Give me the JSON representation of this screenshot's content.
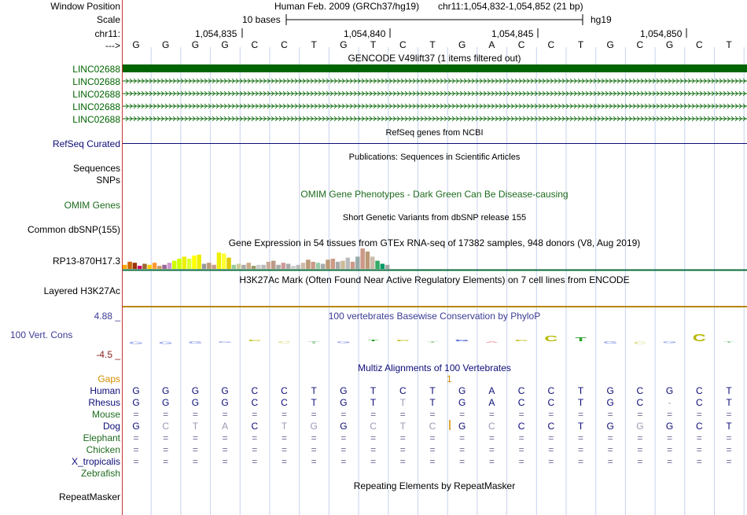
{
  "header": {
    "window_position_label": "Window Position",
    "scale_label": "Scale",
    "chrom_label": "chr11:",
    "strand_label": "--->",
    "assembly": "Human Feb. 2009 (GRCh37/hg19)",
    "position": "chr11:1,054,832-1,054,852 (21 bp)",
    "scale_text": "10 bases",
    "db": "hg19",
    "ticks": [
      "1,054,835",
      "1,054,840",
      "1,054,845",
      "1,054,850"
    ]
  },
  "reference_sequence": [
    "G",
    "G",
    "G",
    "G",
    "C",
    "C",
    "T",
    "G",
    "T",
    "C",
    "T",
    "G",
    "A",
    "C",
    "C",
    "T",
    "G",
    "C",
    "G",
    "C",
    "T"
  ],
  "gencode": {
    "title": "GENCODE V49lift37 (1 items filtered out)",
    "genes": [
      "LINC02688",
      "LINC02688",
      "LINC02688",
      "LINC02688",
      "LINC02688"
    ],
    "color": "#006400"
  },
  "refseq": {
    "title": "RefSeq genes from NCBI",
    "label": "RefSeq Curated"
  },
  "publications": {
    "title": "Publications: Sequences in Scientific Articles",
    "labels": [
      "Sequences",
      "SNPs"
    ]
  },
  "omim": {
    "title": "OMIM Gene Phenotypes - Dark Green Can Be Disease-causing",
    "label": "OMIM Genes"
  },
  "dbsnp": {
    "title": "Short Genetic Variants from dbSNP release 155",
    "label": "Common dbSNP(155)"
  },
  "gtex": {
    "title": "Gene Expression in 54 tissues from GTEx RNA-seq of 17382 samples, 948 donors (V8, Aug 2019)",
    "label": "RP13-870H17.3",
    "bars": [
      0.2,
      0.35,
      0.3,
      0.15,
      0.25,
      0.2,
      0.3,
      0.15,
      0.2,
      0.3,
      0.4,
      0.5,
      0.6,
      0.5,
      0.65,
      0.7,
      0.25,
      0.3,
      0.2,
      0.8,
      0.75,
      0.55,
      0.2,
      0.25,
      0.2,
      0.3,
      0.15,
      0.2,
      0.2,
      0.35,
      0.4,
      0.2,
      0.3,
      0.25,
      0.15,
      0.2,
      0.3,
      0.45,
      0.35,
      0.3,
      0.25,
      0.45,
      0.5,
      0.35,
      0.4,
      0.55,
      0.35,
      0.6,
      1.0,
      0.85,
      0.6,
      0.4,
      0.25,
      0.2
    ],
    "colors": [
      "#ffaa00",
      "#cc6600",
      "#993300",
      "#cc0066",
      "#996633",
      "#ffcc00",
      "#ff9933",
      "#cc9966",
      "#996699",
      "#cc99cc",
      "#ccff00",
      "#ccff00",
      "#eeee00",
      "#ddff33",
      "#ffff00",
      "#eeee00",
      "#999999",
      "#bb9977",
      "#cc9988",
      "#eeee00",
      "#ffff33",
      "#ddcc00",
      "#99cc99",
      "#cccc99",
      "#aaaaaa",
      "#ccaa88",
      "#999966",
      "#cccccc",
      "#bbbbbb",
      "#ccaa99",
      "#bb9988",
      "#aaaaaa",
      "#cc9999",
      "#aaaaaa",
      "#cccccc",
      "#bbbbbb",
      "#ccbbaa",
      "#bb9977",
      "#cc9988",
      "#99ccaa",
      "#aaaaaa",
      "#bb9977",
      "#cc9988",
      "#aaaaaa",
      "#ccbb99",
      "#bbbbbb",
      "#cc9988",
      "#99aaaa",
      "#cc9988",
      "#bb9977",
      "#ccbbaa",
      "#33aa66",
      "#009966",
      "#aaaaaa"
    ]
  },
  "h3k27ac": {
    "title": "H3K27Ac Mark (Often Found Near Active Regulatory Elements) on 7 cell lines from ENCODE",
    "label": "Layered H3K27Ac"
  },
  "conservation": {
    "title": "100 vertebrates Basewise Conservation by PhyloP",
    "label": "100 Vert. Cons",
    "ymax": "4.88 _",
    "ymin": "-4.5 _",
    "scores": [
      -0.6,
      -0.6,
      -0.5,
      -0.2,
      0,
      -0.4,
      -0.5,
      -0.4,
      0,
      0.2,
      -0.3,
      0,
      -0.3,
      0,
      1.2,
      0.9,
      -0.5,
      -0.6,
      -0.4,
      1.5,
      -0.2
    ]
  },
  "multiz": {
    "title": "Multiz Alignments of 100 Vertebrates",
    "gaps_label": "Gaps",
    "gaps_marker": "1",
    "species": [
      {
        "name": "Human",
        "seq": [
          "G",
          "G",
          "G",
          "G",
          "C",
          "C",
          "T",
          "G",
          "T",
          "C",
          "T",
          "G",
          "A",
          "C",
          "C",
          "T",
          "G",
          "C",
          "G",
          "C",
          "T"
        ],
        "faded": []
      },
      {
        "name": "Rhesus",
        "seq": [
          "G",
          "G",
          "G",
          "G",
          "C",
          "C",
          "T",
          "G",
          "T",
          "T",
          "T",
          "G",
          "A",
          "C",
          "C",
          "T",
          "G",
          "C",
          "-",
          "C",
          "T"
        ],
        "faded": [
          9,
          18
        ]
      },
      {
        "name": "Mouse",
        "seq": [
          "=",
          "=",
          "=",
          "=",
          "=",
          "=",
          "=",
          "=",
          "=",
          "=",
          "=",
          "=",
          "=",
          "=",
          "=",
          "=",
          "=",
          "=",
          "=",
          "=",
          "="
        ],
        "faded": []
      },
      {
        "name": "Dog",
        "seq": [
          "G",
          "C",
          "T",
          "A",
          "C",
          "T",
          "G",
          "G",
          "C",
          "T",
          "C",
          "G",
          "C",
          "C",
          "C",
          "T",
          "G",
          "G",
          "G",
          "C",
          "T"
        ],
        "faded": [
          1,
          2,
          3,
          5,
          6,
          8,
          9,
          10,
          12,
          17
        ]
      },
      {
        "name": "Elephant",
        "seq": [
          "=",
          "=",
          "=",
          "=",
          "=",
          "=",
          "=",
          "=",
          "=",
          "=",
          "=",
          "=",
          "=",
          "=",
          "=",
          "=",
          "=",
          "=",
          "=",
          "=",
          "="
        ],
        "faded": []
      },
      {
        "name": "Chicken",
        "seq": [
          "=",
          "=",
          "=",
          "=",
          "=",
          "=",
          "=",
          "=",
          "=",
          "=",
          "=",
          "=",
          "=",
          "=",
          "=",
          "=",
          "=",
          "=",
          "=",
          "=",
          "="
        ],
        "faded": []
      },
      {
        "name": "X_tropicalis",
        "seq": [
          "=",
          "=",
          "=",
          "=",
          "=",
          "=",
          "=",
          "=",
          "=",
          "=",
          "=",
          "=",
          "=",
          "=",
          "=",
          "=",
          "=",
          "=",
          "=",
          "=",
          "="
        ],
        "faded": []
      },
      {
        "name": "Zebrafish",
        "seq": [],
        "faded": []
      }
    ]
  },
  "repeatmasker": {
    "title": "Repeating Elements by RepeatMasker",
    "label": "RepeatMasker"
  },
  "colors": {
    "gencode_green": "#006400",
    "refseq_blue": "#0c0c78",
    "omim_green": "#1e6b1e",
    "cons_blue": "#3c3c96",
    "gaps_orange": "#d28c00",
    "rule_red": "#cc3333"
  }
}
